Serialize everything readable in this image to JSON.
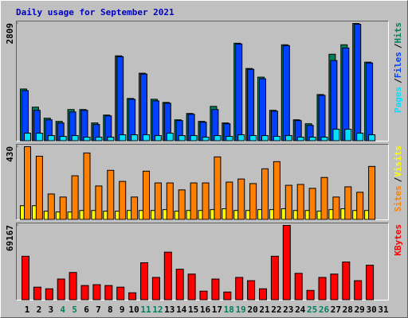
{
  "chart_data": [
    {
      "type": "bar",
      "title": "Daily usage for September 2021",
      "legend_separator": "/",
      "ylim": [
        0,
        2809
      ],
      "yticks": [
        2809
      ],
      "series": [
        {
          "name": "Pages",
          "color": "#00e0ff",
          "values": [
            189,
            189,
            132,
            113,
            132,
            94,
            94,
            94,
            151,
            151,
            151,
            132,
            189,
            132,
            132,
            94,
            132,
            113,
            151,
            132,
            132,
            113,
            132,
            94,
            94,
            94,
            283,
            283,
            189,
            151,
            0
          ]
        },
        {
          "name": "Files",
          "color": "#0040ff",
          "values": [
            1206,
            735,
            509,
            434,
            697,
            735,
            396,
            603,
            2017,
            999,
            1602,
            961,
            905,
            490,
            641,
            452,
            754,
            415,
            2319,
            1715,
            1489,
            716,
            2281,
            490,
            377,
            1093,
            1923,
            2224,
            2790,
            1866,
            0
          ]
        },
        {
          "name": "Hits",
          "color": "#00805c",
          "values": [
            1244,
            811,
            547,
            471,
            754,
            754,
            434,
            622,
            2036,
            1018,
            1621,
            999,
            924,
            509,
            660,
            471,
            829,
            434,
            2337,
            1734,
            1527,
            735,
            2300,
            509,
            415,
            1112,
            2074,
            2300,
            2809,
            1885,
            0
          ]
        }
      ]
    },
    {
      "type": "bar",
      "legend_separator": "/",
      "ylim": [
        0,
        430
      ],
      "yticks": [
        430
      ],
      "series": [
        {
          "name": "Sites",
          "color": "#ff8000",
          "values": [
            430,
            374,
            152,
            134,
            259,
            393,
            199,
            291,
            226,
            134,
            286,
            217,
            217,
            176,
            217,
            217,
            370,
            222,
            240,
            213,
            300,
            342,
            203,
            208,
            185,
            249,
            134,
            194,
            162,
            314,
            0
          ]
        },
        {
          "name": "Visits",
          "color": "#ffff00",
          "values": [
            83,
            83,
            51,
            46,
            46,
            55,
            55,
            51,
            51,
            55,
            55,
            55,
            60,
            51,
            55,
            55,
            60,
            65,
            55,
            55,
            60,
            60,
            65,
            55,
            55,
            51,
            60,
            65,
            55,
            55,
            0
          ]
        }
      ]
    },
    {
      "type": "bar",
      "ylim": [
        0,
        69167
      ],
      "yticks": [
        69167
      ],
      "series": [
        {
          "name": "KBytes",
          "color": "#ff0000",
          "values": [
            40600,
            12000,
            10500,
            19500,
            25600,
            13500,
            14300,
            13500,
            12000,
            6800,
            34600,
            21000,
            44400,
            28600,
            24100,
            8300,
            19500,
            7500,
            21000,
            18000,
            10500,
            40600,
            69167,
            24800,
            9000,
            21000,
            24100,
            35300,
            18000,
            32300,
            0
          ]
        }
      ],
      "categories": [
        "1",
        "2",
        "3",
        "4",
        "5",
        "6",
        "7",
        "8",
        "9",
        "10",
        "11",
        "12",
        "13",
        "14",
        "15",
        "16",
        "17",
        "18",
        "19",
        "20",
        "21",
        "22",
        "23",
        "24",
        "25",
        "26",
        "27",
        "28",
        "29",
        "30",
        "31"
      ],
      "category_colors": [
        "#000000",
        "#000000",
        "#000000",
        "#00805c",
        "#00805c",
        "#000000",
        "#000000",
        "#000000",
        "#000000",
        "#000000",
        "#00805c",
        "#00805c",
        "#000000",
        "#000000",
        "#000000",
        "#000000",
        "#000000",
        "#00805c",
        "#00805c",
        "#000000",
        "#000000",
        "#000000",
        "#000000",
        "#000000",
        "#00805c",
        "#00805c",
        "#000000",
        "#000000",
        "#000000",
        "#000000",
        "#000000"
      ]
    }
  ]
}
